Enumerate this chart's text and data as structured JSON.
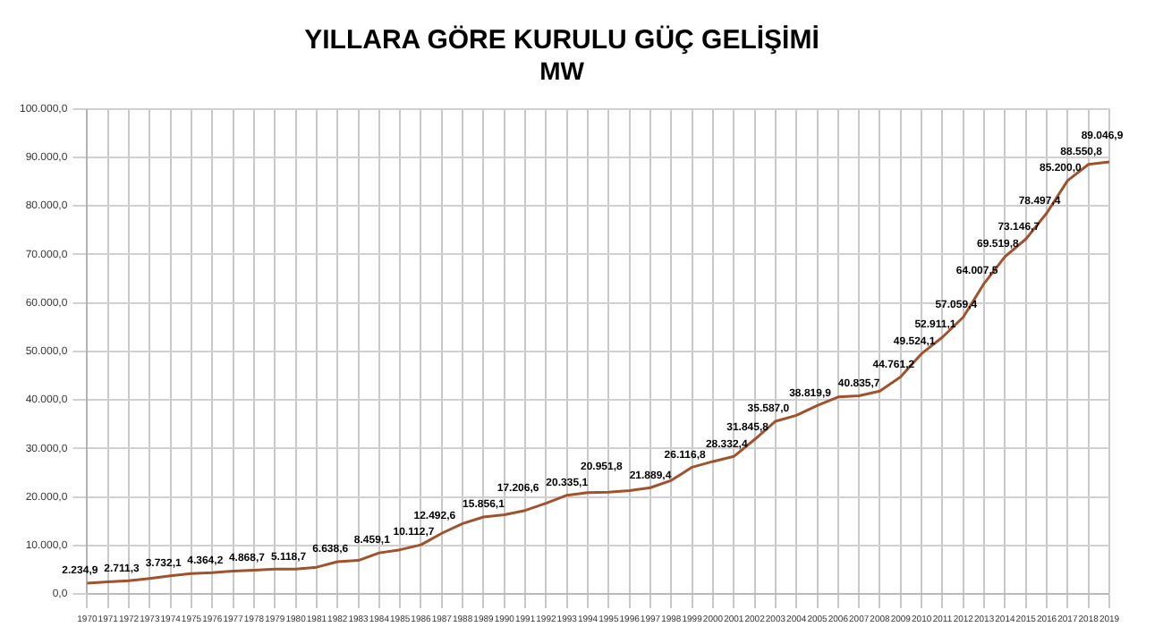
{
  "chart_data": {
    "type": "line",
    "title": "YILLARA GÖRE KURULU GÜÇ GELİŞİMİ",
    "subtitle": "MW",
    "categories": [
      "1970",
      "1971",
      "1972",
      "1973",
      "1974",
      "1975",
      "1976",
      "1977",
      "1978",
      "1979",
      "1980",
      "1981",
      "1982",
      "1983",
      "1984",
      "1985",
      "1986",
      "1987",
      "1988",
      "1989",
      "1990",
      "1991",
      "1992",
      "1993",
      "1994",
      "1995",
      "1996",
      "1997",
      "1998",
      "1999",
      "2000",
      "2001",
      "2002",
      "2003",
      "2004",
      "2005",
      "2006",
      "2007",
      "2008",
      "2009",
      "2010",
      "2011",
      "2012",
      "2013",
      "2014",
      "2015",
      "2016",
      "2017",
      "2018",
      "2019"
    ],
    "series": [
      {
        "color": "#a0522d",
        "values": [
          2234.9,
          2500,
          2711.3,
          3200,
          3732.1,
          4200,
          4364.2,
          4700,
          4868.7,
          5100,
          5118.7,
          5500,
          6638.6,
          6900,
          8459.1,
          9100,
          10112.7,
          12492.6,
          14500,
          15856.1,
          16300,
          17206.6,
          18700,
          20335.1,
          20900,
          20951.8,
          21300,
          21889.4,
          23400,
          26116.8,
          27300,
          28332.4,
          31845.8,
          35587.0,
          36800,
          38819.9,
          40600,
          40835.7,
          41800,
          44761.2,
          49524.1,
          52911.1,
          57059.4,
          64007.5,
          69519.8,
          73146.7,
          78497.4,
          85200.0,
          88550.8,
          89046.9
        ],
        "value_labels": [
          "2.234,9",
          null,
          "2.711,3",
          null,
          "3.732,1",
          null,
          "4.364,2",
          null,
          "4.868,7",
          null,
          "5.118,7",
          null,
          "6.638,6",
          null,
          "8.459,1",
          null,
          "10.112,7",
          "12.492,6",
          null,
          "15.856,1",
          null,
          "17.206,6",
          null,
          "20.335,1",
          null,
          "20.951,8",
          null,
          "21.889,4",
          null,
          "26.116,8",
          null,
          "28.332,4",
          "31.845,8",
          "35.587,0",
          null,
          "38.819,9",
          null,
          "40.835,7",
          null,
          "44.761,2",
          "49.524,1",
          "52.911,1",
          "57.059,4",
          "64.007,5",
          "69.519,8",
          "73.146,7",
          "78.497,4",
          "85.200,0",
          "88.550,8",
          "89.046,9"
        ]
      }
    ],
    "ylim": [
      0,
      100000
    ],
    "yticks": [
      {
        "value": 0,
        "label": "0,0"
      },
      {
        "value": 10000,
        "label": "10.000,0"
      },
      {
        "value": 20000,
        "label": "20.000,0"
      },
      {
        "value": 30000,
        "label": "30.000,0"
      },
      {
        "value": 40000,
        "label": "40.000,0"
      },
      {
        "value": 50000,
        "label": "50.000,0"
      },
      {
        "value": 60000,
        "label": "60.000,0"
      },
      {
        "value": 70000,
        "label": "70.000,0"
      },
      {
        "value": 80000,
        "label": "80.000,0"
      },
      {
        "value": 90000,
        "label": "90.000,0"
      },
      {
        "value": 100000,
        "label": "100.000,0"
      }
    ],
    "grid": true,
    "legend": false,
    "marker": "none",
    "line_style": "solid"
  }
}
